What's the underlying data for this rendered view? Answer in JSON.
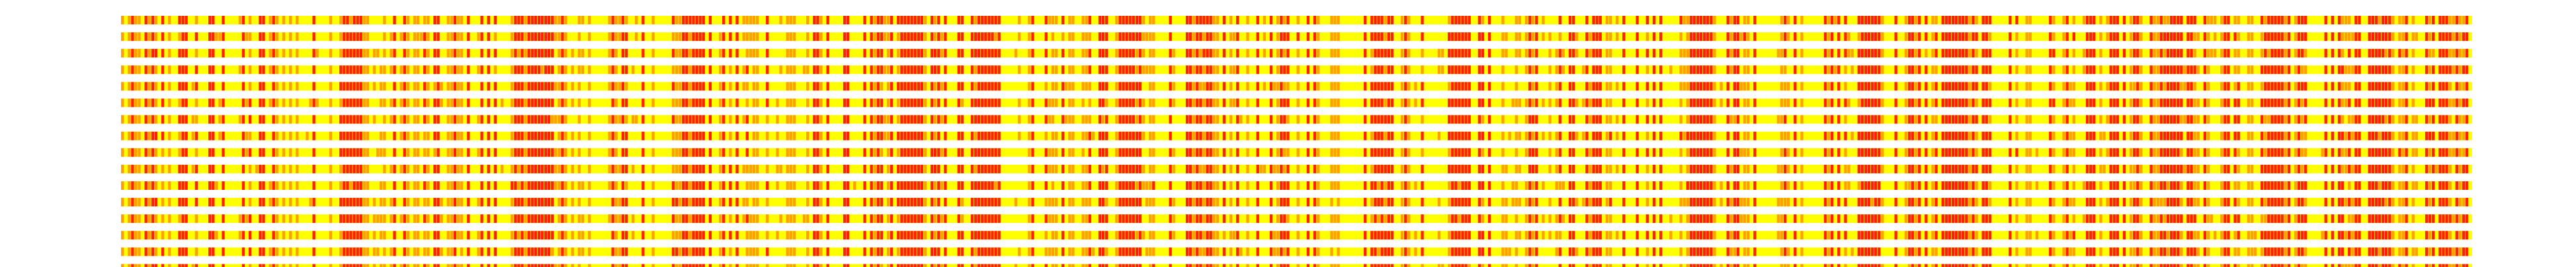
{
  "colors": {
    "background": "#ffffff",
    "low": "#ffff00",
    "mid": "#ffa000",
    "high": "#ff2000",
    "row_gap": "#ffffff"
  },
  "chart_data": {
    "type": "heatmap",
    "title": "",
    "xlabel": "",
    "ylabel": "",
    "rows": 16,
    "columns": 700,
    "colormap": "yellow-orange-red",
    "value_range": [
      0,
      1
    ],
    "axes_visible": false,
    "grid": false,
    "legend": "none",
    "row_values": []
  }
}
